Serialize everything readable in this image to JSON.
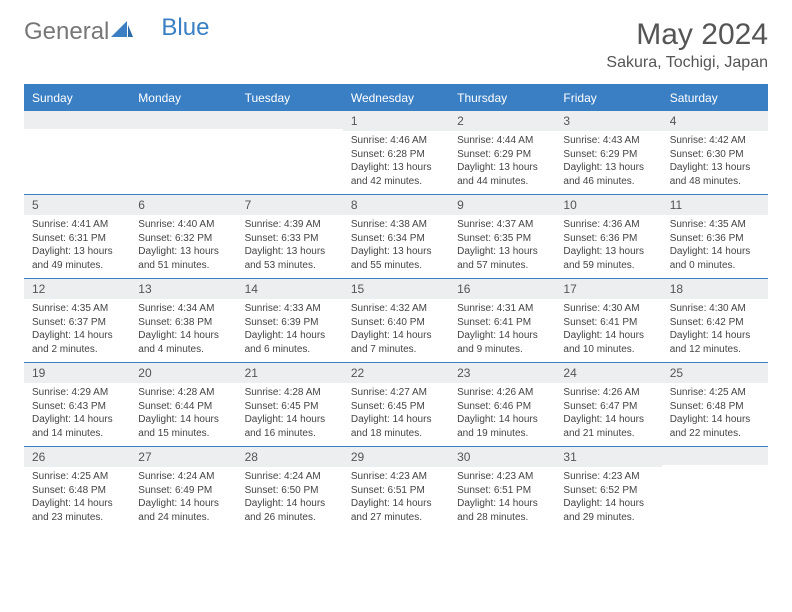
{
  "brand": {
    "part1": "General",
    "part2": "Blue"
  },
  "title": "May 2024",
  "location": "Sakura, Tochigi, Japan",
  "colors": {
    "accent": "#3a7fc4",
    "header_bg": "#3a7fc4",
    "header_text": "#ffffff",
    "daynum_bg": "#eceef0",
    "text": "#444444",
    "background": "#ffffff"
  },
  "weekdays": [
    "Sunday",
    "Monday",
    "Tuesday",
    "Wednesday",
    "Thursday",
    "Friday",
    "Saturday"
  ],
  "weeks": [
    [
      {
        "n": "",
        "sr": "",
        "ss": "",
        "dl": ""
      },
      {
        "n": "",
        "sr": "",
        "ss": "",
        "dl": ""
      },
      {
        "n": "",
        "sr": "",
        "ss": "",
        "dl": ""
      },
      {
        "n": "1",
        "sr": "4:46 AM",
        "ss": "6:28 PM",
        "dl": "13 hours and 42 minutes."
      },
      {
        "n": "2",
        "sr": "4:44 AM",
        "ss": "6:29 PM",
        "dl": "13 hours and 44 minutes."
      },
      {
        "n": "3",
        "sr": "4:43 AM",
        "ss": "6:29 PM",
        "dl": "13 hours and 46 minutes."
      },
      {
        "n": "4",
        "sr": "4:42 AM",
        "ss": "6:30 PM",
        "dl": "13 hours and 48 minutes."
      }
    ],
    [
      {
        "n": "5",
        "sr": "4:41 AM",
        "ss": "6:31 PM",
        "dl": "13 hours and 49 minutes."
      },
      {
        "n": "6",
        "sr": "4:40 AM",
        "ss": "6:32 PM",
        "dl": "13 hours and 51 minutes."
      },
      {
        "n": "7",
        "sr": "4:39 AM",
        "ss": "6:33 PM",
        "dl": "13 hours and 53 minutes."
      },
      {
        "n": "8",
        "sr": "4:38 AM",
        "ss": "6:34 PM",
        "dl": "13 hours and 55 minutes."
      },
      {
        "n": "9",
        "sr": "4:37 AM",
        "ss": "6:35 PM",
        "dl": "13 hours and 57 minutes."
      },
      {
        "n": "10",
        "sr": "4:36 AM",
        "ss": "6:36 PM",
        "dl": "13 hours and 59 minutes."
      },
      {
        "n": "11",
        "sr": "4:35 AM",
        "ss": "6:36 PM",
        "dl": "14 hours and 0 minutes."
      }
    ],
    [
      {
        "n": "12",
        "sr": "4:35 AM",
        "ss": "6:37 PM",
        "dl": "14 hours and 2 minutes."
      },
      {
        "n": "13",
        "sr": "4:34 AM",
        "ss": "6:38 PM",
        "dl": "14 hours and 4 minutes."
      },
      {
        "n": "14",
        "sr": "4:33 AM",
        "ss": "6:39 PM",
        "dl": "14 hours and 6 minutes."
      },
      {
        "n": "15",
        "sr": "4:32 AM",
        "ss": "6:40 PM",
        "dl": "14 hours and 7 minutes."
      },
      {
        "n": "16",
        "sr": "4:31 AM",
        "ss": "6:41 PM",
        "dl": "14 hours and 9 minutes."
      },
      {
        "n": "17",
        "sr": "4:30 AM",
        "ss": "6:41 PM",
        "dl": "14 hours and 10 minutes."
      },
      {
        "n": "18",
        "sr": "4:30 AM",
        "ss": "6:42 PM",
        "dl": "14 hours and 12 minutes."
      }
    ],
    [
      {
        "n": "19",
        "sr": "4:29 AM",
        "ss": "6:43 PM",
        "dl": "14 hours and 14 minutes."
      },
      {
        "n": "20",
        "sr": "4:28 AM",
        "ss": "6:44 PM",
        "dl": "14 hours and 15 minutes."
      },
      {
        "n": "21",
        "sr": "4:28 AM",
        "ss": "6:45 PM",
        "dl": "14 hours and 16 minutes."
      },
      {
        "n": "22",
        "sr": "4:27 AM",
        "ss": "6:45 PM",
        "dl": "14 hours and 18 minutes."
      },
      {
        "n": "23",
        "sr": "4:26 AM",
        "ss": "6:46 PM",
        "dl": "14 hours and 19 minutes."
      },
      {
        "n": "24",
        "sr": "4:26 AM",
        "ss": "6:47 PM",
        "dl": "14 hours and 21 minutes."
      },
      {
        "n": "25",
        "sr": "4:25 AM",
        "ss": "6:48 PM",
        "dl": "14 hours and 22 minutes."
      }
    ],
    [
      {
        "n": "26",
        "sr": "4:25 AM",
        "ss": "6:48 PM",
        "dl": "14 hours and 23 minutes."
      },
      {
        "n": "27",
        "sr": "4:24 AM",
        "ss": "6:49 PM",
        "dl": "14 hours and 24 minutes."
      },
      {
        "n": "28",
        "sr": "4:24 AM",
        "ss": "6:50 PM",
        "dl": "14 hours and 26 minutes."
      },
      {
        "n": "29",
        "sr": "4:23 AM",
        "ss": "6:51 PM",
        "dl": "14 hours and 27 minutes."
      },
      {
        "n": "30",
        "sr": "4:23 AM",
        "ss": "6:51 PM",
        "dl": "14 hours and 28 minutes."
      },
      {
        "n": "31",
        "sr": "4:23 AM",
        "ss": "6:52 PM",
        "dl": "14 hours and 29 minutes."
      },
      {
        "n": "",
        "sr": "",
        "ss": "",
        "dl": ""
      }
    ]
  ],
  "labels": {
    "sunrise": "Sunrise:",
    "sunset": "Sunset:",
    "daylight": "Daylight:"
  }
}
